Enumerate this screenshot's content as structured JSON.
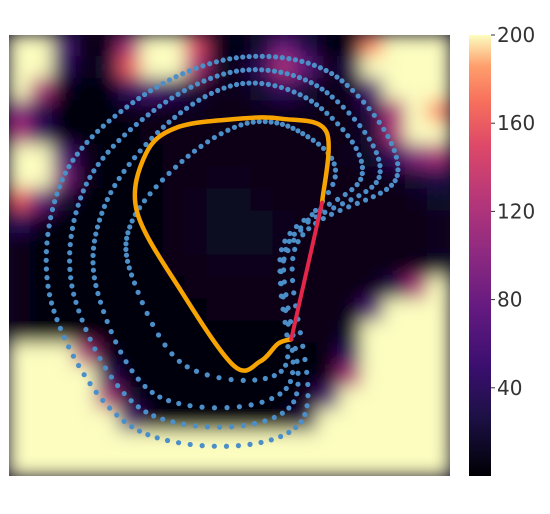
{
  "chart_data": {
    "type": "heatmap",
    "title": "",
    "xlabel": "",
    "ylabel": "",
    "axes_visible": false,
    "field": {
      "colormap": "magma",
      "vmin": 0,
      "vmax": 200,
      "grid_size": 20,
      "grid": [
        [
          200,
          200,
          60,
          5,
          10,
          120,
          200,
          200,
          150,
          10,
          5,
          20,
          80,
          30,
          5,
          5,
          180,
          200,
          200,
          200
        ],
        [
          200,
          200,
          40,
          5,
          20,
          160,
          200,
          200,
          120,
          15,
          10,
          40,
          120,
          70,
          10,
          30,
          200,
          200,
          200,
          200
        ],
        [
          200,
          120,
          10,
          5,
          5,
          40,
          60,
          40,
          20,
          10,
          10,
          20,
          40,
          20,
          10,
          10,
          60,
          200,
          200,
          200
        ],
        [
          100,
          30,
          5,
          5,
          5,
          10,
          10,
          10,
          10,
          8,
          8,
          10,
          10,
          10,
          8,
          8,
          30,
          120,
          200,
          180
        ],
        [
          120,
          40,
          5,
          5,
          5,
          5,
          8,
          8,
          8,
          8,
          8,
          8,
          8,
          8,
          8,
          8,
          20,
          120,
          200,
          200
        ],
        [
          200,
          200,
          60,
          10,
          5,
          5,
          5,
          8,
          8,
          8,
          8,
          8,
          8,
          8,
          8,
          10,
          15,
          40,
          100,
          120
        ],
        [
          200,
          200,
          90,
          10,
          5,
          5,
          5,
          8,
          8,
          10,
          10,
          8,
          8,
          8,
          8,
          8,
          8,
          10,
          20,
          30
        ],
        [
          160,
          80,
          20,
          5,
          5,
          5,
          5,
          8,
          10,
          12,
          12,
          10,
          8,
          8,
          8,
          8,
          8,
          8,
          10,
          15
        ],
        [
          40,
          10,
          5,
          5,
          5,
          5,
          5,
          8,
          10,
          12,
          12,
          12,
          10,
          8,
          8,
          8,
          8,
          8,
          8,
          10
        ],
        [
          10,
          5,
          5,
          5,
          5,
          5,
          5,
          8,
          10,
          12,
          12,
          12,
          10,
          8,
          8,
          8,
          8,
          8,
          8,
          10
        ],
        [
          10,
          5,
          5,
          5,
          5,
          5,
          5,
          8,
          8,
          10,
          10,
          10,
          8,
          8,
          8,
          8,
          8,
          8,
          10,
          15
        ],
        [
          10,
          5,
          5,
          5,
          5,
          5,
          5,
          5,
          8,
          8,
          8,
          8,
          8,
          8,
          8,
          8,
          10,
          30,
          120,
          200
        ],
        [
          10,
          5,
          5,
          5,
          5,
          5,
          5,
          5,
          5,
          8,
          8,
          8,
          8,
          8,
          8,
          10,
          60,
          200,
          200,
          200
        ],
        [
          10,
          5,
          5,
          5,
          5,
          5,
          5,
          5,
          5,
          5,
          5,
          5,
          5,
          8,
          8,
          15,
          200,
          200,
          200,
          200
        ],
        [
          200,
          200,
          200,
          120,
          10,
          5,
          5,
          5,
          5,
          5,
          5,
          5,
          5,
          5,
          8,
          40,
          200,
          200,
          200,
          200
        ],
        [
          200,
          200,
          200,
          200,
          40,
          5,
          5,
          5,
          5,
          5,
          5,
          5,
          5,
          5,
          10,
          120,
          200,
          200,
          200,
          200
        ],
        [
          200,
          200,
          200,
          200,
          120,
          20,
          5,
          5,
          5,
          5,
          5,
          5,
          5,
          8,
          60,
          200,
          200,
          200,
          200,
          200
        ],
        [
          200,
          200,
          200,
          200,
          200,
          60,
          10,
          5,
          5,
          5,
          5,
          5,
          8,
          30,
          200,
          200,
          200,
          200,
          200,
          200
        ],
        [
          200,
          200,
          200,
          200,
          200,
          200,
          200,
          200,
          200,
          200,
          200,
          200,
          200,
          200,
          200,
          200,
          200,
          200,
          200,
          200
        ],
        [
          200,
          200,
          200,
          200,
          200,
          200,
          200,
          200,
          200,
          200,
          200,
          200,
          200,
          200,
          200,
          200,
          200,
          200,
          200,
          200
        ]
      ]
    },
    "scatter": {
      "color": "#4c8fc8",
      "loops": [
        {
          "points": [
            [
              0.53,
              0.05
            ],
            [
              0.75,
              0.1
            ],
            [
              0.88,
              0.32
            ],
            [
              0.65,
              0.48
            ],
            [
              0.66,
              0.88
            ],
            [
              0.3,
              0.9
            ],
            [
              0.1,
              0.62
            ],
            [
              0.12,
              0.33
            ],
            [
              0.3,
              0.14
            ]
          ],
          "count": 140
        },
        {
          "points": [
            [
              0.53,
              0.08
            ],
            [
              0.72,
              0.13
            ],
            [
              0.84,
              0.32
            ],
            [
              0.63,
              0.48
            ],
            [
              0.64,
              0.84
            ],
            [
              0.32,
              0.86
            ],
            [
              0.15,
              0.6
            ],
            [
              0.17,
              0.35
            ],
            [
              0.33,
              0.17
            ]
          ],
          "count": 125
        },
        {
          "points": [
            [
              0.53,
              0.11
            ],
            [
              0.7,
              0.16
            ],
            [
              0.8,
              0.32
            ],
            [
              0.62,
              0.48
            ],
            [
              0.63,
              0.8
            ],
            [
              0.34,
              0.82
            ],
            [
              0.2,
              0.58
            ],
            [
              0.22,
              0.38
            ],
            [
              0.36,
              0.2
            ]
          ],
          "count": 110
        },
        {
          "points": [
            [
              0.54,
              0.2
            ],
            [
              0.66,
              0.22
            ],
            [
              0.74,
              0.32
            ],
            [
              0.62,
              0.52
            ],
            [
              0.62,
              0.76
            ],
            [
              0.4,
              0.75
            ],
            [
              0.28,
              0.55
            ],
            [
              0.28,
              0.42
            ],
            [
              0.4,
              0.28
            ]
          ],
          "count": 85
        }
      ]
    },
    "orange_curve": {
      "color": "#f7a300",
      "points": [
        [
          0.71,
          0.38
        ],
        [
          0.72,
          0.22
        ],
        [
          0.62,
          0.19
        ],
        [
          0.52,
          0.19
        ],
        [
          0.38,
          0.21
        ],
        [
          0.31,
          0.27
        ],
        [
          0.29,
          0.4
        ],
        [
          0.39,
          0.58
        ],
        [
          0.51,
          0.75
        ],
        [
          0.57,
          0.74
        ],
        [
          0.61,
          0.7
        ],
        [
          0.64,
          0.69
        ]
      ]
    },
    "red_segment": {
      "color": "#e3264a",
      "points": [
        [
          0.71,
          0.38
        ],
        [
          0.64,
          0.69
        ]
      ]
    },
    "colorbar": {
      "ticks": [
        "200",
        "160",
        "120",
        "80",
        "40"
      ],
      "tick_values": [
        200,
        160,
        120,
        80,
        40
      ],
      "vmin": 0,
      "vmax": 200
    }
  }
}
